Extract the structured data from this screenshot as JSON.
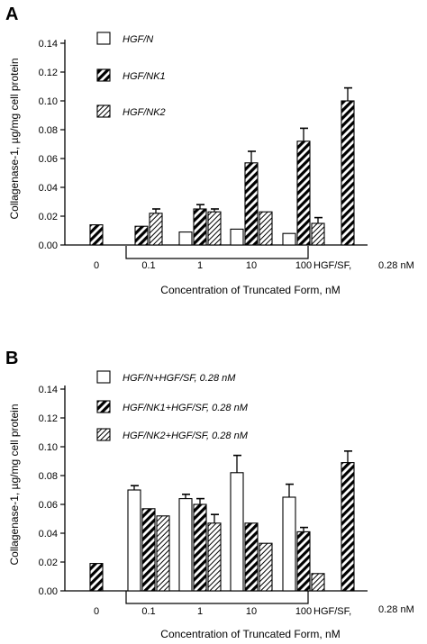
{
  "chart_data": [
    {
      "type": "bar",
      "panel": "A",
      "ylabel": "Collagenase-1, µg/mg cell protein",
      "xlabel": "Concentration of Truncated Form, nM",
      "ylim": [
        0,
        0.14
      ],
      "yticks": [
        "0.00",
        "0.02",
        "0.04",
        "0.06",
        "0.08",
        "0.10",
        "0.12",
        "0.14"
      ],
      "categories": [
        "0",
        "0.1",
        "1",
        "10",
        "100",
        "HGF/SF,"
      ],
      "hgf_conc_label": "0.28 nM",
      "legend": [
        "HGF/N",
        "HGF/NK1",
        "HGF/NK2"
      ],
      "series": [
        {
          "name": "HGF/N",
          "pattern": "open",
          "values": [
            null,
            null,
            0.009,
            0.011,
            0.008,
            null
          ],
          "errors": [
            null,
            null,
            null,
            null,
            null,
            null
          ]
        },
        {
          "name": "HGF/NK1",
          "pattern": "dense-hatch",
          "values": [
            0.014,
            0.013,
            0.025,
            0.057,
            0.072,
            0.1
          ],
          "errors": [
            null,
            null,
            0.003,
            0.008,
            0.009,
            0.009
          ]
        },
        {
          "name": "HGF/NK2",
          "pattern": "light-hatch",
          "values": [
            null,
            0.022,
            0.023,
            0.023,
            0.015,
            null
          ],
          "errors": [
            null,
            0.003,
            0.002,
            null,
            0.004,
            null
          ]
        }
      ]
    },
    {
      "type": "bar",
      "panel": "B",
      "ylabel": "Collagenase-1, µg/mg cell protein",
      "xlabel": "Concentration of Truncated Form, nM",
      "ylim": [
        0,
        0.14
      ],
      "yticks": [
        "0.00",
        "0.02",
        "0.04",
        "0.06",
        "0.08",
        "0.10",
        "0.12",
        "0.14"
      ],
      "categories": [
        "0",
        "0.1",
        "1",
        "10",
        "100",
        "HGF/SF,"
      ],
      "hgf_conc_label": "0.28 nM",
      "legend": [
        "HGF/N+HGF/SF, 0.28 nM",
        "HGF/NK1+HGF/SF, 0.28 nM",
        "HGF/NK2+HGF/SF, 0.28 nM"
      ],
      "series": [
        {
          "name": "HGF/N+HGF/SF, 0.28 nM",
          "pattern": "open",
          "values": [
            null,
            0.07,
            0.064,
            0.082,
            0.065,
            null
          ],
          "errors": [
            null,
            0.003,
            0.003,
            0.012,
            0.009,
            null
          ]
        },
        {
          "name": "HGF/NK1+HGF/SF, 0.28 nM",
          "pattern": "dense-hatch",
          "values": [
            0.019,
            0.057,
            0.06,
            0.047,
            0.041,
            0.089
          ],
          "errors": [
            null,
            null,
            0.004,
            null,
            0.003,
            0.008
          ]
        },
        {
          "name": "HGF/NK2+HGF/SF, 0.28 nM",
          "pattern": "light-hatch",
          "values": [
            null,
            0.052,
            0.047,
            0.033,
            0.012,
            null
          ],
          "errors": [
            null,
            null,
            0.006,
            null,
            null,
            null
          ]
        }
      ]
    }
  ]
}
